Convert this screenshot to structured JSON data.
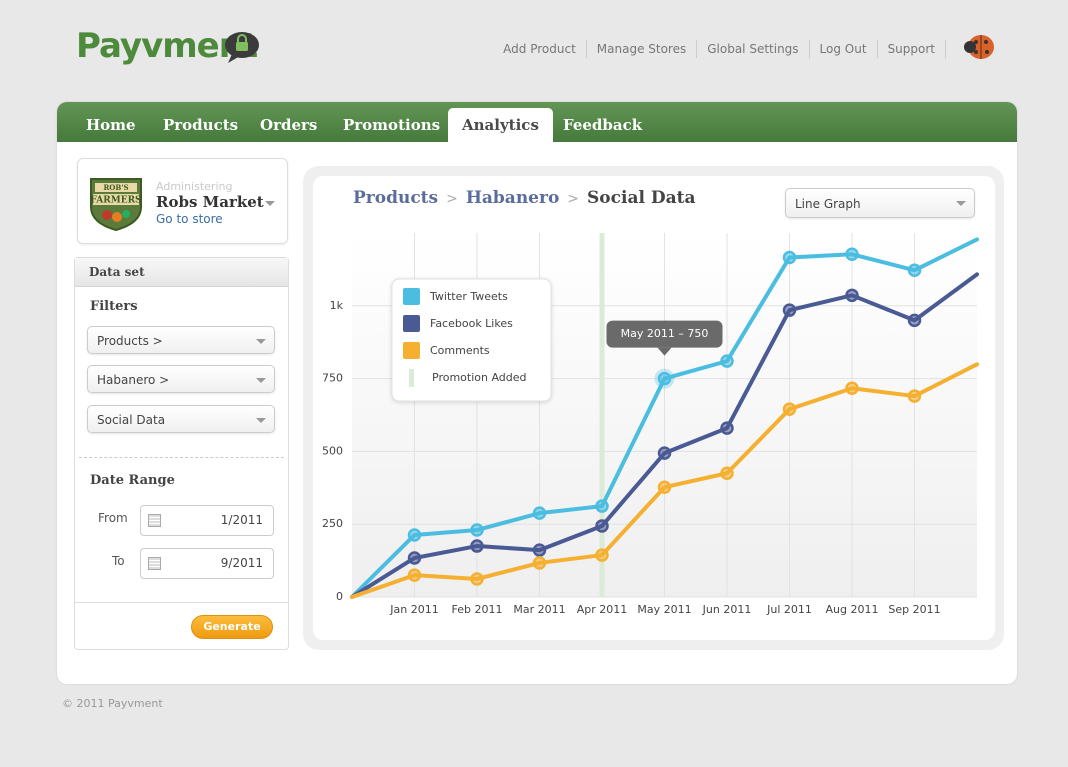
{
  "header": {
    "logo": "Payvment",
    "nav": [
      "Add Product",
      "Manage Stores",
      "Global Settings",
      "Log Out",
      "Support"
    ]
  },
  "tabs": {
    "items": [
      "Home",
      "Products",
      "Orders",
      "Promotions",
      "Analytics",
      "Feedback"
    ],
    "active": 4
  },
  "store": {
    "logo_lines": [
      "ROB'S",
      "FARMERS"
    ],
    "label": "Administering",
    "name": "Robs Market",
    "link": "Go to store"
  },
  "dataset": {
    "title": "Data set",
    "filters_title": "Filters",
    "filters": [
      "Products >",
      "Habanero >",
      "Social Data"
    ],
    "date_range_title": "Date Range",
    "from_label": "From",
    "from": "1/2011",
    "to_label": "To",
    "to": "9/2011",
    "button": "Generate"
  },
  "breadcrumb": {
    "items": [
      "Products",
      "Habanero",
      "Social Data"
    ],
    "separator": ">"
  },
  "graph_type": "Line Graph",
  "chart_data": {
    "type": "line",
    "categories": [
      null,
      "Jan 2011",
      "Feb 2011",
      "Mar 2011",
      "Apr 2011",
      "May 2011",
      "Jun 2011",
      "Jul 2011",
      "Aug 2011",
      "Sep 2011",
      null
    ],
    "series": [
      {
        "name": "Twitter Tweets",
        "color": "#4bbde0",
        "values": [
          0,
          213,
          230,
          288,
          312,
          750,
          810,
          1166,
          1177,
          1122,
          1228
        ]
      },
      {
        "name": "Facebook Likes",
        "color": "#4a5a94",
        "values": [
          0,
          134,
          175,
          161,
          244,
          494,
          580,
          985,
          1036,
          950,
          1108
        ]
      },
      {
        "name": "Comments",
        "color": "#f5b031",
        "values": [
          0,
          75,
          62,
          117,
          144,
          377,
          425,
          645,
          717,
          690,
          799
        ]
      }
    ],
    "promotion": {
      "name": "Promotion Added",
      "color": "#dcebd8",
      "x": 4
    },
    "annotations": [
      {
        "text": "May 2011 – 750",
        "series": 0,
        "index": 5
      }
    ],
    "ylim": [
      0,
      1250
    ],
    "yticks": [
      0,
      250,
      500,
      750,
      {
        "value": 1000,
        "label": "1k"
      }
    ],
    "grid": true,
    "legend": "top-left"
  },
  "footer": "© 2011 Payvment"
}
